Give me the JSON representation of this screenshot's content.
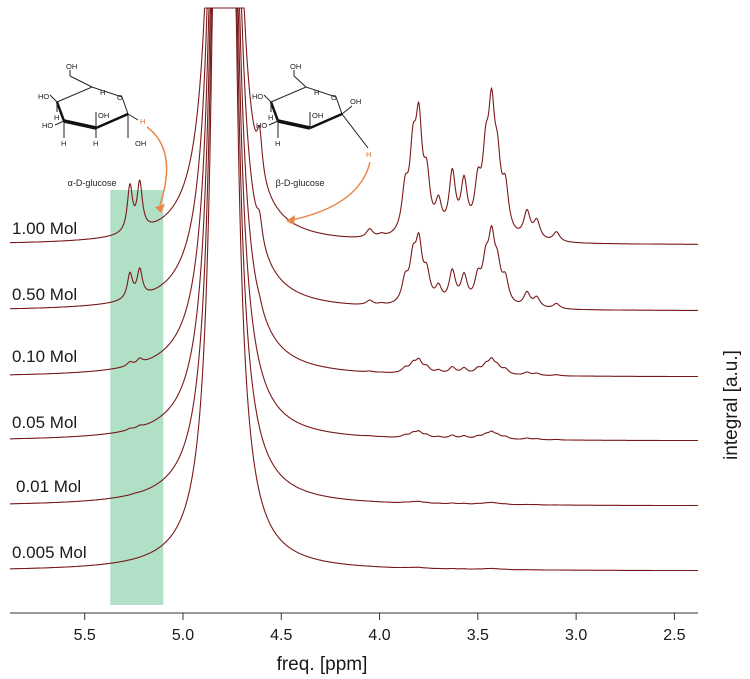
{
  "chart_data": {
    "type": "line",
    "title": "",
    "xlabel": "freq. [ppm]",
    "ylabel": "integral [a.u.]",
    "xlim": [
      5.88,
      2.38
    ],
    "x_reversed": true,
    "xticks": [
      "5.5",
      "5.0",
      "4.5",
      "4.0",
      "3.5",
      "3.0",
      "2.5"
    ],
    "xtick_values": [
      5.5,
      5.0,
      4.5,
      4.0,
      3.5,
      3.0,
      2.5
    ],
    "highlight_region_ppm": [
      5.37,
      5.1
    ],
    "highlight_color": "#8fd3ae",
    "line_color": "#7a1a1a",
    "series": [
      {
        "name": "1.00 Mol",
        "alpha_peaks": [
          [
            5.27,
            0.95
          ],
          [
            5.22,
            0.97
          ]
        ],
        "beta_peaks": [
          [
            4.72,
            0.43
          ],
          [
            4.61,
            0.82
          ]
        ],
        "sugar_scale": 1.0
      },
      {
        "name": "0.50 Mol",
        "alpha_peaks": [
          [
            5.27,
            0.52
          ],
          [
            5.22,
            0.56
          ]
        ],
        "beta_peaks": [
          [
            4.72,
            0.22
          ],
          [
            4.61,
            0.44
          ]
        ],
        "sugar_scale": 0.54
      },
      {
        "name": "0.10 Mol",
        "alpha_peaks": [
          [
            5.27,
            0.08
          ],
          [
            5.22,
            0.1
          ]
        ],
        "beta_peaks": [
          [
            4.61,
            0.07
          ]
        ],
        "sugar_scale": 0.115
      },
      {
        "name": "0.05 Mol",
        "alpha_peaks": [
          [
            5.27,
            0.03
          ],
          [
            5.22,
            0.04
          ]
        ],
        "beta_peaks": [],
        "sugar_scale": 0.055
      },
      {
        "name": "0.01 Mol",
        "alpha_peaks": [
          [
            5.24,
            0.01
          ]
        ],
        "beta_peaks": [],
        "sugar_scale": 0.015
      },
      {
        "name": "0.005 Mol",
        "alpha_peaks": [],
        "beta_peaks": [],
        "sugar_scale": 0.008
      }
    ],
    "sugar_region_peaks": [
      [
        4.05,
        0.18
      ],
      [
        3.99,
        0.06
      ],
      [
        3.87,
        0.85
      ],
      [
        3.83,
        1.5
      ],
      [
        3.8,
        2.1
      ],
      [
        3.76,
        1.05
      ],
      [
        3.7,
        0.6
      ],
      [
        3.63,
        1.25
      ],
      [
        3.57,
        1.05
      ],
      [
        3.5,
        0.92
      ],
      [
        3.46,
        1.35
      ],
      [
        3.43,
        2.25
      ],
      [
        3.4,
        1.2
      ],
      [
        3.36,
        0.9
      ],
      [
        3.25,
        0.55
      ],
      [
        3.2,
        0.38
      ],
      [
        3.1,
        0.2
      ]
    ],
    "water_peak_ppm": 4.79,
    "annotations": {
      "alpha": {
        "label": "α-D-glucose",
        "atoms": [
          "OH",
          "HO",
          "HO",
          "H",
          "H",
          "OH",
          "H",
          "H",
          "O",
          "OH"
        ],
        "anomeric_h": "H"
      },
      "beta": {
        "label": "β-D-glucose",
        "atoms": [
          "OH",
          "HO",
          "HO",
          "H",
          "H",
          "OH",
          "H",
          "O",
          "OH"
        ],
        "anomeric_h": "H"
      }
    }
  }
}
